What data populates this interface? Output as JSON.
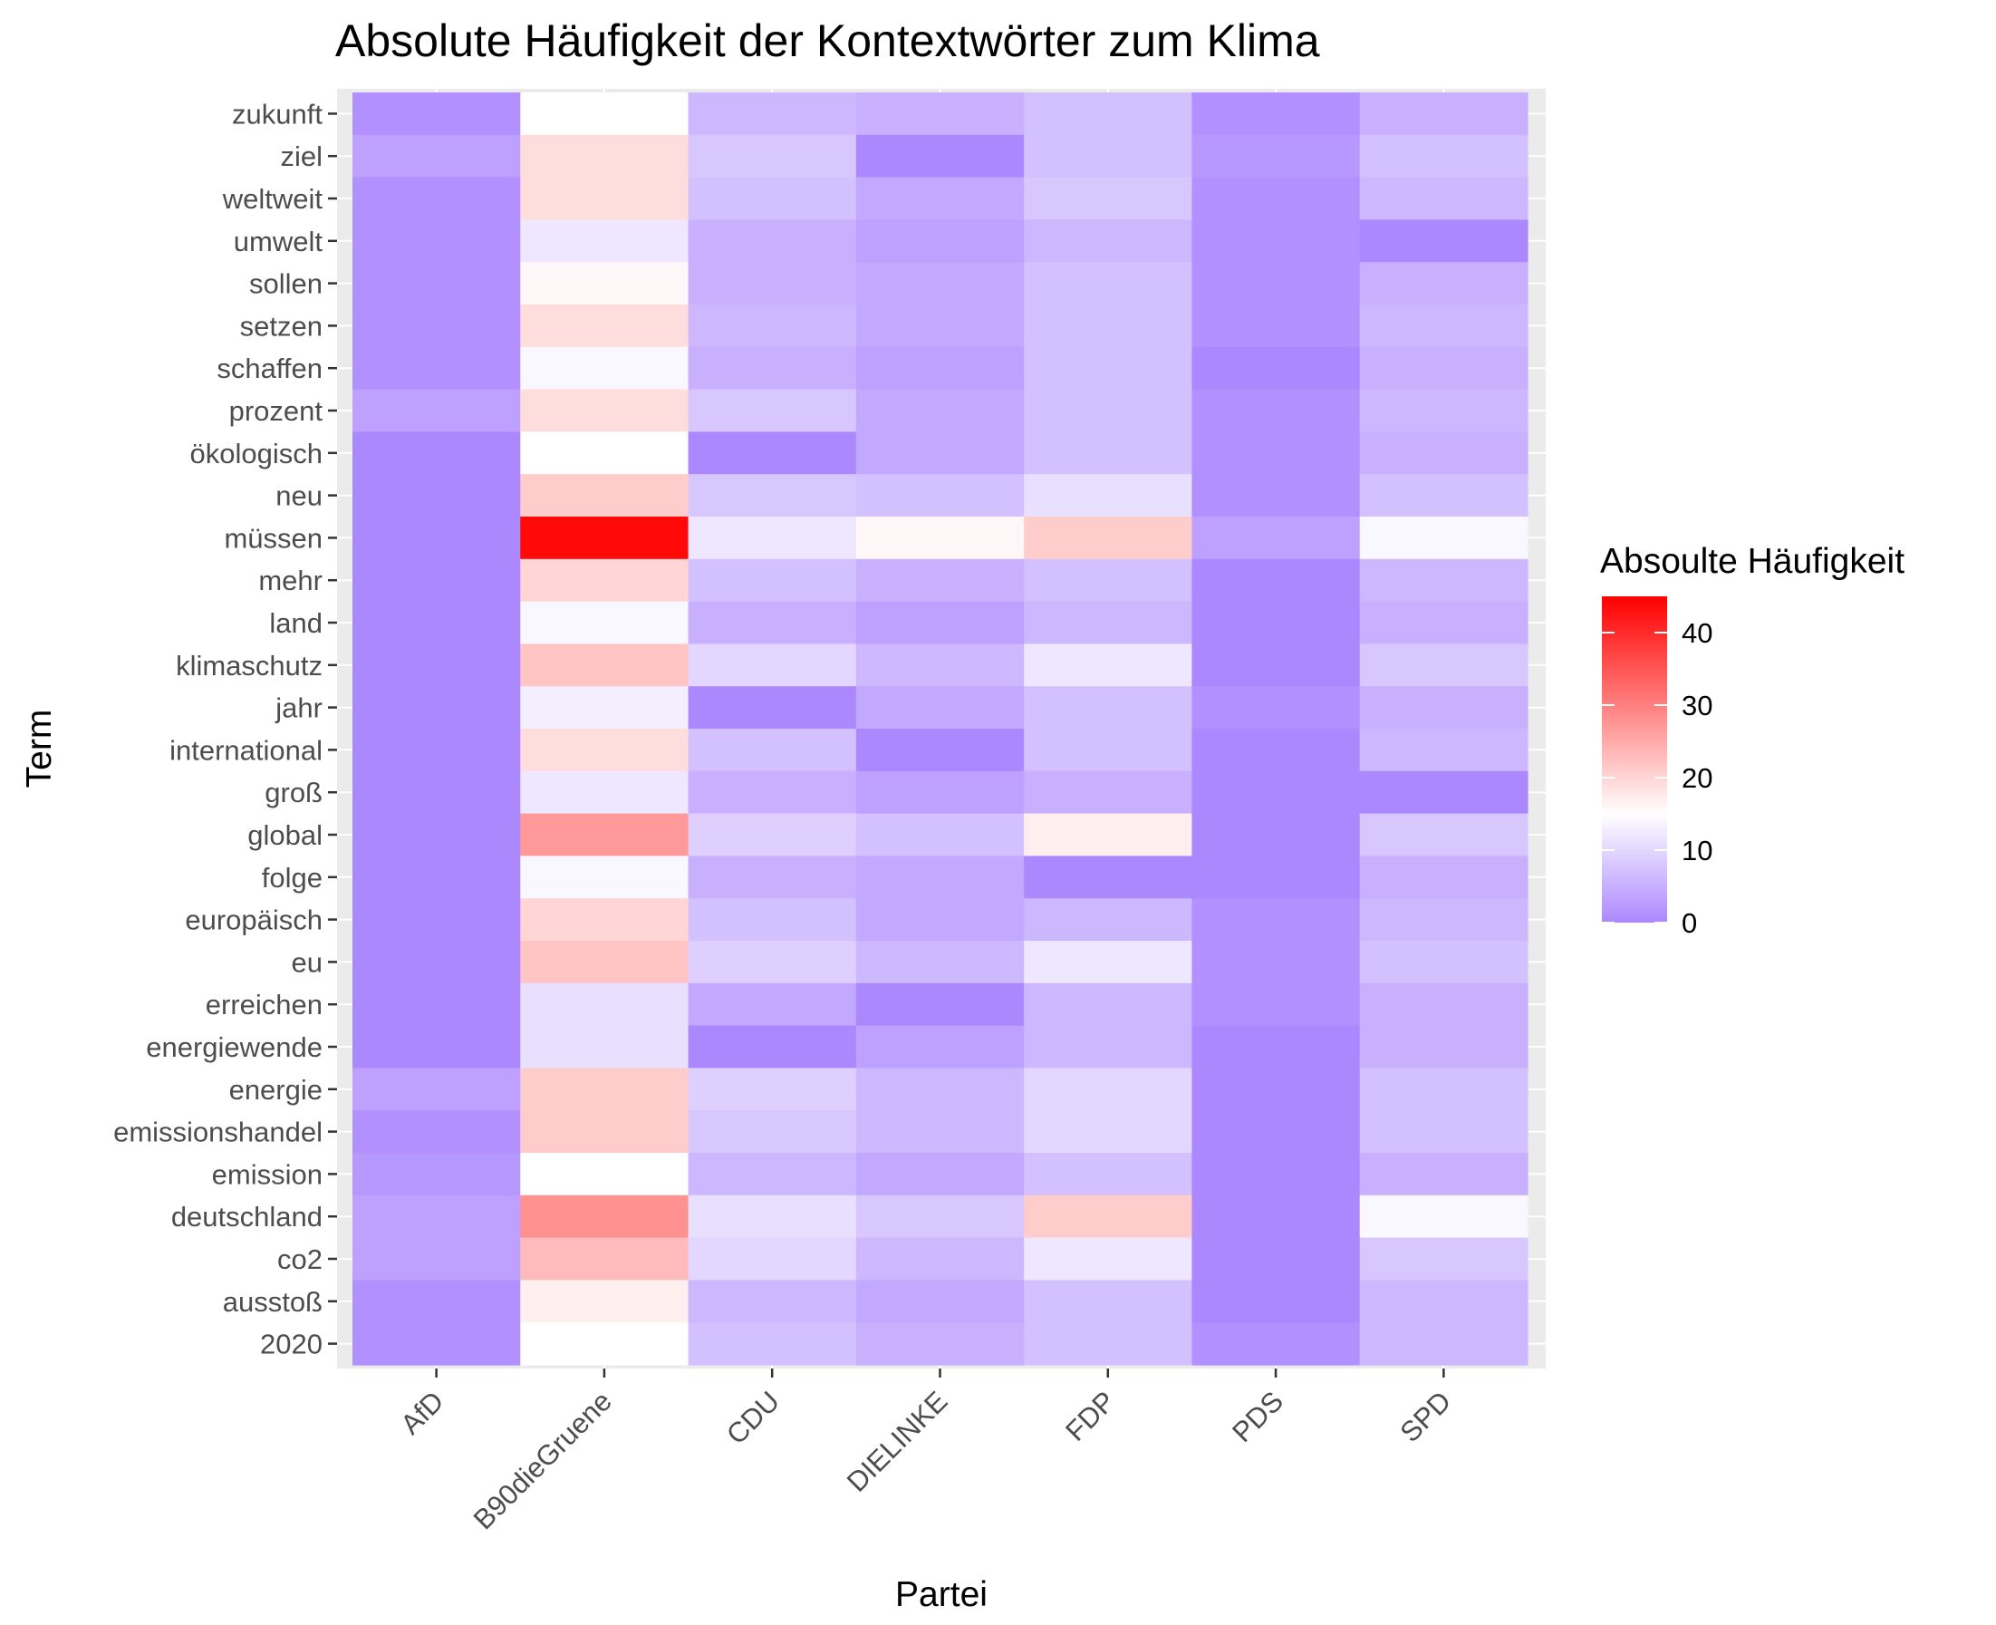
{
  "chart_data": {
    "type": "heatmap",
    "title": "Absolute Häufigkeit der Kontextwörter zum Klima",
    "xlabel": "Partei",
    "ylabel": "Term",
    "x_categories": [
      "AfD",
      "B90dieGruene",
      "CDU",
      "DIELINKE",
      "FDP",
      "PDS",
      "SPD"
    ],
    "y_categories": [
      "zukunft",
      "ziel",
      "weltweit",
      "umwelt",
      "sollen",
      "setzen",
      "schaffen",
      "prozent",
      "ökologisch",
      "neu",
      "müssen",
      "mehr",
      "land",
      "klimaschutz",
      "jahr",
      "international",
      "groß",
      "global",
      "folge",
      "europäisch",
      "eu",
      "erreichen",
      "energiewende",
      "energie",
      "emissionshandel",
      "emission",
      "deutschland",
      "co2",
      "ausstoß",
      "2020"
    ],
    "values": [
      [
        1,
        15,
        6,
        5,
        7,
        1,
        5
      ],
      [
        3,
        19,
        8,
        0,
        7,
        2,
        7
      ],
      [
        1,
        19,
        7,
        4,
        8,
        1,
        6
      ],
      [
        1,
        12,
        5,
        3,
        6,
        1,
        0
      ],
      [
        1,
        16,
        5,
        4,
        7,
        1,
        5
      ],
      [
        1,
        19,
        6,
        4,
        7,
        1,
        6
      ],
      [
        1,
        14,
        5,
        3,
        7,
        0,
        5
      ],
      [
        3,
        19,
        8,
        4,
        7,
        1,
        6
      ],
      [
        0,
        15,
        0,
        4,
        7,
        1,
        5
      ],
      [
        0,
        21,
        8,
        7,
        11,
        1,
        7
      ],
      [
        0,
        44,
        12,
        16,
        21,
        3,
        14
      ],
      [
        0,
        20,
        7,
        5,
        7,
        0,
        6
      ],
      [
        0,
        14,
        5,
        3,
        6,
        0,
        5
      ],
      [
        0,
        22,
        10,
        6,
        12,
        0,
        8
      ],
      [
        0,
        13,
        0,
        4,
        7,
        1,
        5
      ],
      [
        0,
        19,
        7,
        0,
        7,
        0,
        6
      ],
      [
        0,
        12,
        5,
        3,
        5,
        0,
        0
      ],
      [
        0,
        27,
        9,
        7,
        17,
        0,
        8
      ],
      [
        0,
        14,
        5,
        4,
        0,
        0,
        5
      ],
      [
        0,
        20,
        7,
        4,
        6,
        1,
        6
      ],
      [
        0,
        22,
        9,
        6,
        12,
        1,
        7
      ],
      [
        0,
        11,
        4,
        0,
        6,
        1,
        5
      ],
      [
        0,
        11,
        0,
        3,
        6,
        0,
        5
      ],
      [
        3,
        21,
        9,
        6,
        10,
        0,
        7
      ],
      [
        1,
        21,
        8,
        6,
        10,
        0,
        7
      ],
      [
        2,
        15,
        6,
        4,
        7,
        0,
        5
      ],
      [
        3,
        28,
        11,
        8,
        21,
        0,
        14
      ],
      [
        3,
        23,
        10,
        6,
        12,
        0,
        8
      ],
      [
        1,
        17,
        6,
        4,
        7,
        0,
        6
      ],
      [
        1,
        15,
        7,
        5,
        7,
        1,
        6
      ]
    ],
    "color_scale": {
      "title": "Absoulte Häufigkeit",
      "min": 0,
      "mid": 15,
      "max": 45,
      "low_color": "#ac88ff",
      "mid_color": "#ffffff",
      "high_color": "#ff0000",
      "breaks": [
        0,
        10,
        20,
        30,
        40
      ]
    },
    "panel_background": "#ebebeb",
    "grid": true,
    "legend_position": "right"
  }
}
